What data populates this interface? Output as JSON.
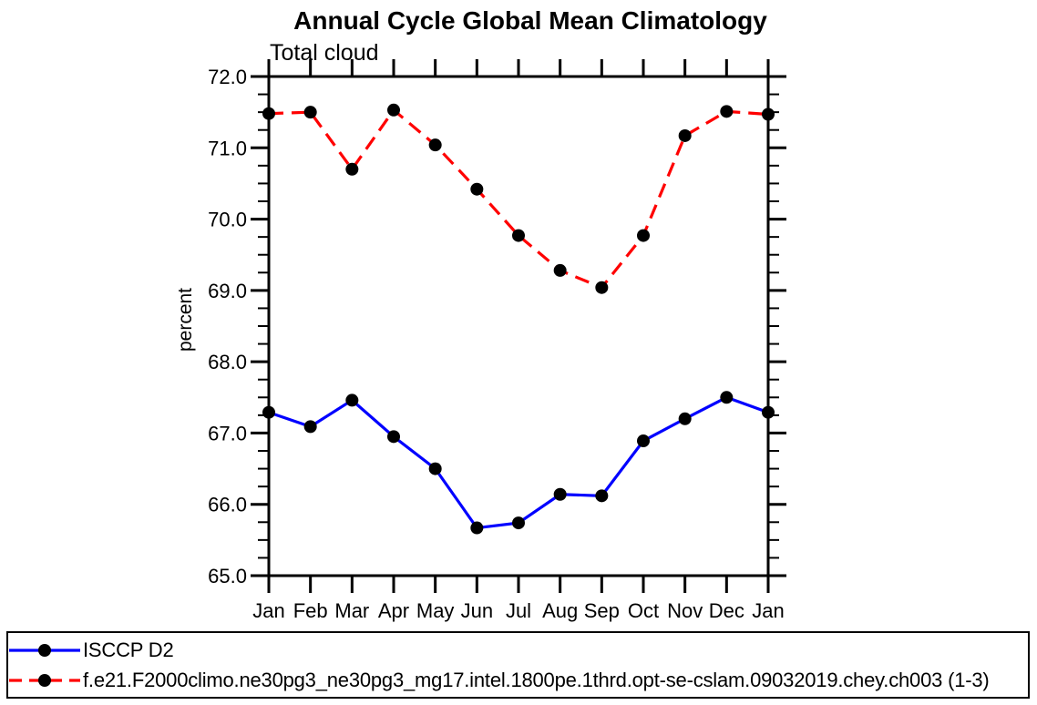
{
  "chart_data": {
    "type": "line",
    "title": "Annual Cycle Global Mean Climatology",
    "subtitle": "Total cloud",
    "xlabel": "",
    "ylabel": "percent",
    "categories": [
      "Jan",
      "Feb",
      "Mar",
      "Apr",
      "May",
      "Jun",
      "Jul",
      "Aug",
      "Sep",
      "Oct",
      "Nov",
      "Dec",
      "Jan"
    ],
    "series": [
      {
        "name": "ISCCP D2",
        "color": "#0000ff",
        "line_style": "solid",
        "marker": "filled-circle",
        "marker_color": "#000000",
        "values": [
          67.29,
          67.09,
          67.46,
          66.95,
          66.5,
          65.67,
          65.74,
          66.14,
          66.12,
          66.89,
          67.2,
          67.5,
          67.29
        ]
      },
      {
        "name": "f.e21.F2000climo.ne30pg3_ne30pg3_mg17.intel.1800pe.1thrd.opt-se-cslam.09032019.chey.ch003 (1-3)",
        "color": "#ff0000",
        "line_style": "dashed",
        "marker": "filled-circle",
        "marker_color": "#000000",
        "values": [
          71.48,
          71.5,
          70.7,
          71.53,
          71.04,
          70.42,
          69.77,
          69.28,
          69.04,
          69.77,
          71.17,
          71.51,
          71.47
        ]
      }
    ],
    "ylim": [
      65.0,
      72.0
    ],
    "y_major_step": 1.0,
    "y_minor_step": 0.25,
    "y_tick_format": "one-decimal",
    "grid": false,
    "legend_position": "bottom-full-width-box",
    "axis_color": "#000000"
  }
}
